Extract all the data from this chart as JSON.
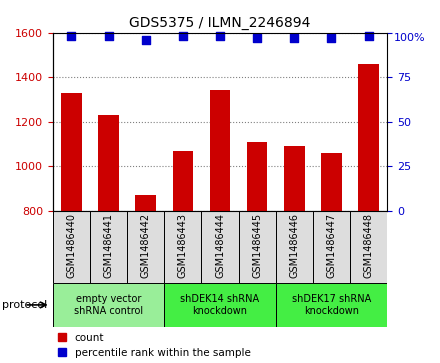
{
  "title": "GDS5375 / ILMN_2246894",
  "samples": [
    "GSM1486440",
    "GSM1486441",
    "GSM1486442",
    "GSM1486443",
    "GSM1486444",
    "GSM1486445",
    "GSM1486446",
    "GSM1486447",
    "GSM1486448"
  ],
  "counts": [
    1330,
    1230,
    870,
    1070,
    1340,
    1110,
    1090,
    1060,
    1460
  ],
  "percentiles": [
    98,
    98,
    96,
    98,
    98,
    97,
    97,
    97,
    98
  ],
  "ylim_left": [
    800,
    1600
  ],
  "ylim_right": [
    0,
    100
  ],
  "yticks_left": [
    800,
    1000,
    1200,
    1400,
    1600
  ],
  "yticks_right": [
    0,
    25,
    50,
    75,
    100
  ],
  "bar_color": "#cc0000",
  "dot_color": "#0000cc",
  "groups": [
    {
      "label": "empty vector\nshRNA control",
      "start": 0,
      "end": 3,
      "color": "#99ee99"
    },
    {
      "label": "shDEK14 shRNA\nknockdown",
      "start": 3,
      "end": 6,
      "color": "#44ee44"
    },
    {
      "label": "shDEK17 shRNA\nknockdown",
      "start": 6,
      "end": 9,
      "color": "#44ee44"
    }
  ],
  "sample_cell_color": "#dddddd",
  "legend_count_label": "count",
  "legend_percentile_label": "percentile rank within the sample",
  "bar_width": 0.55,
  "dot_size": 40,
  "grid_color": "black",
  "grid_linestyle": "dotted",
  "grid_alpha": 0.5,
  "tick_label_color_left": "#cc0000",
  "tick_label_color_right": "#0000cc",
  "right_top_label": "100%"
}
